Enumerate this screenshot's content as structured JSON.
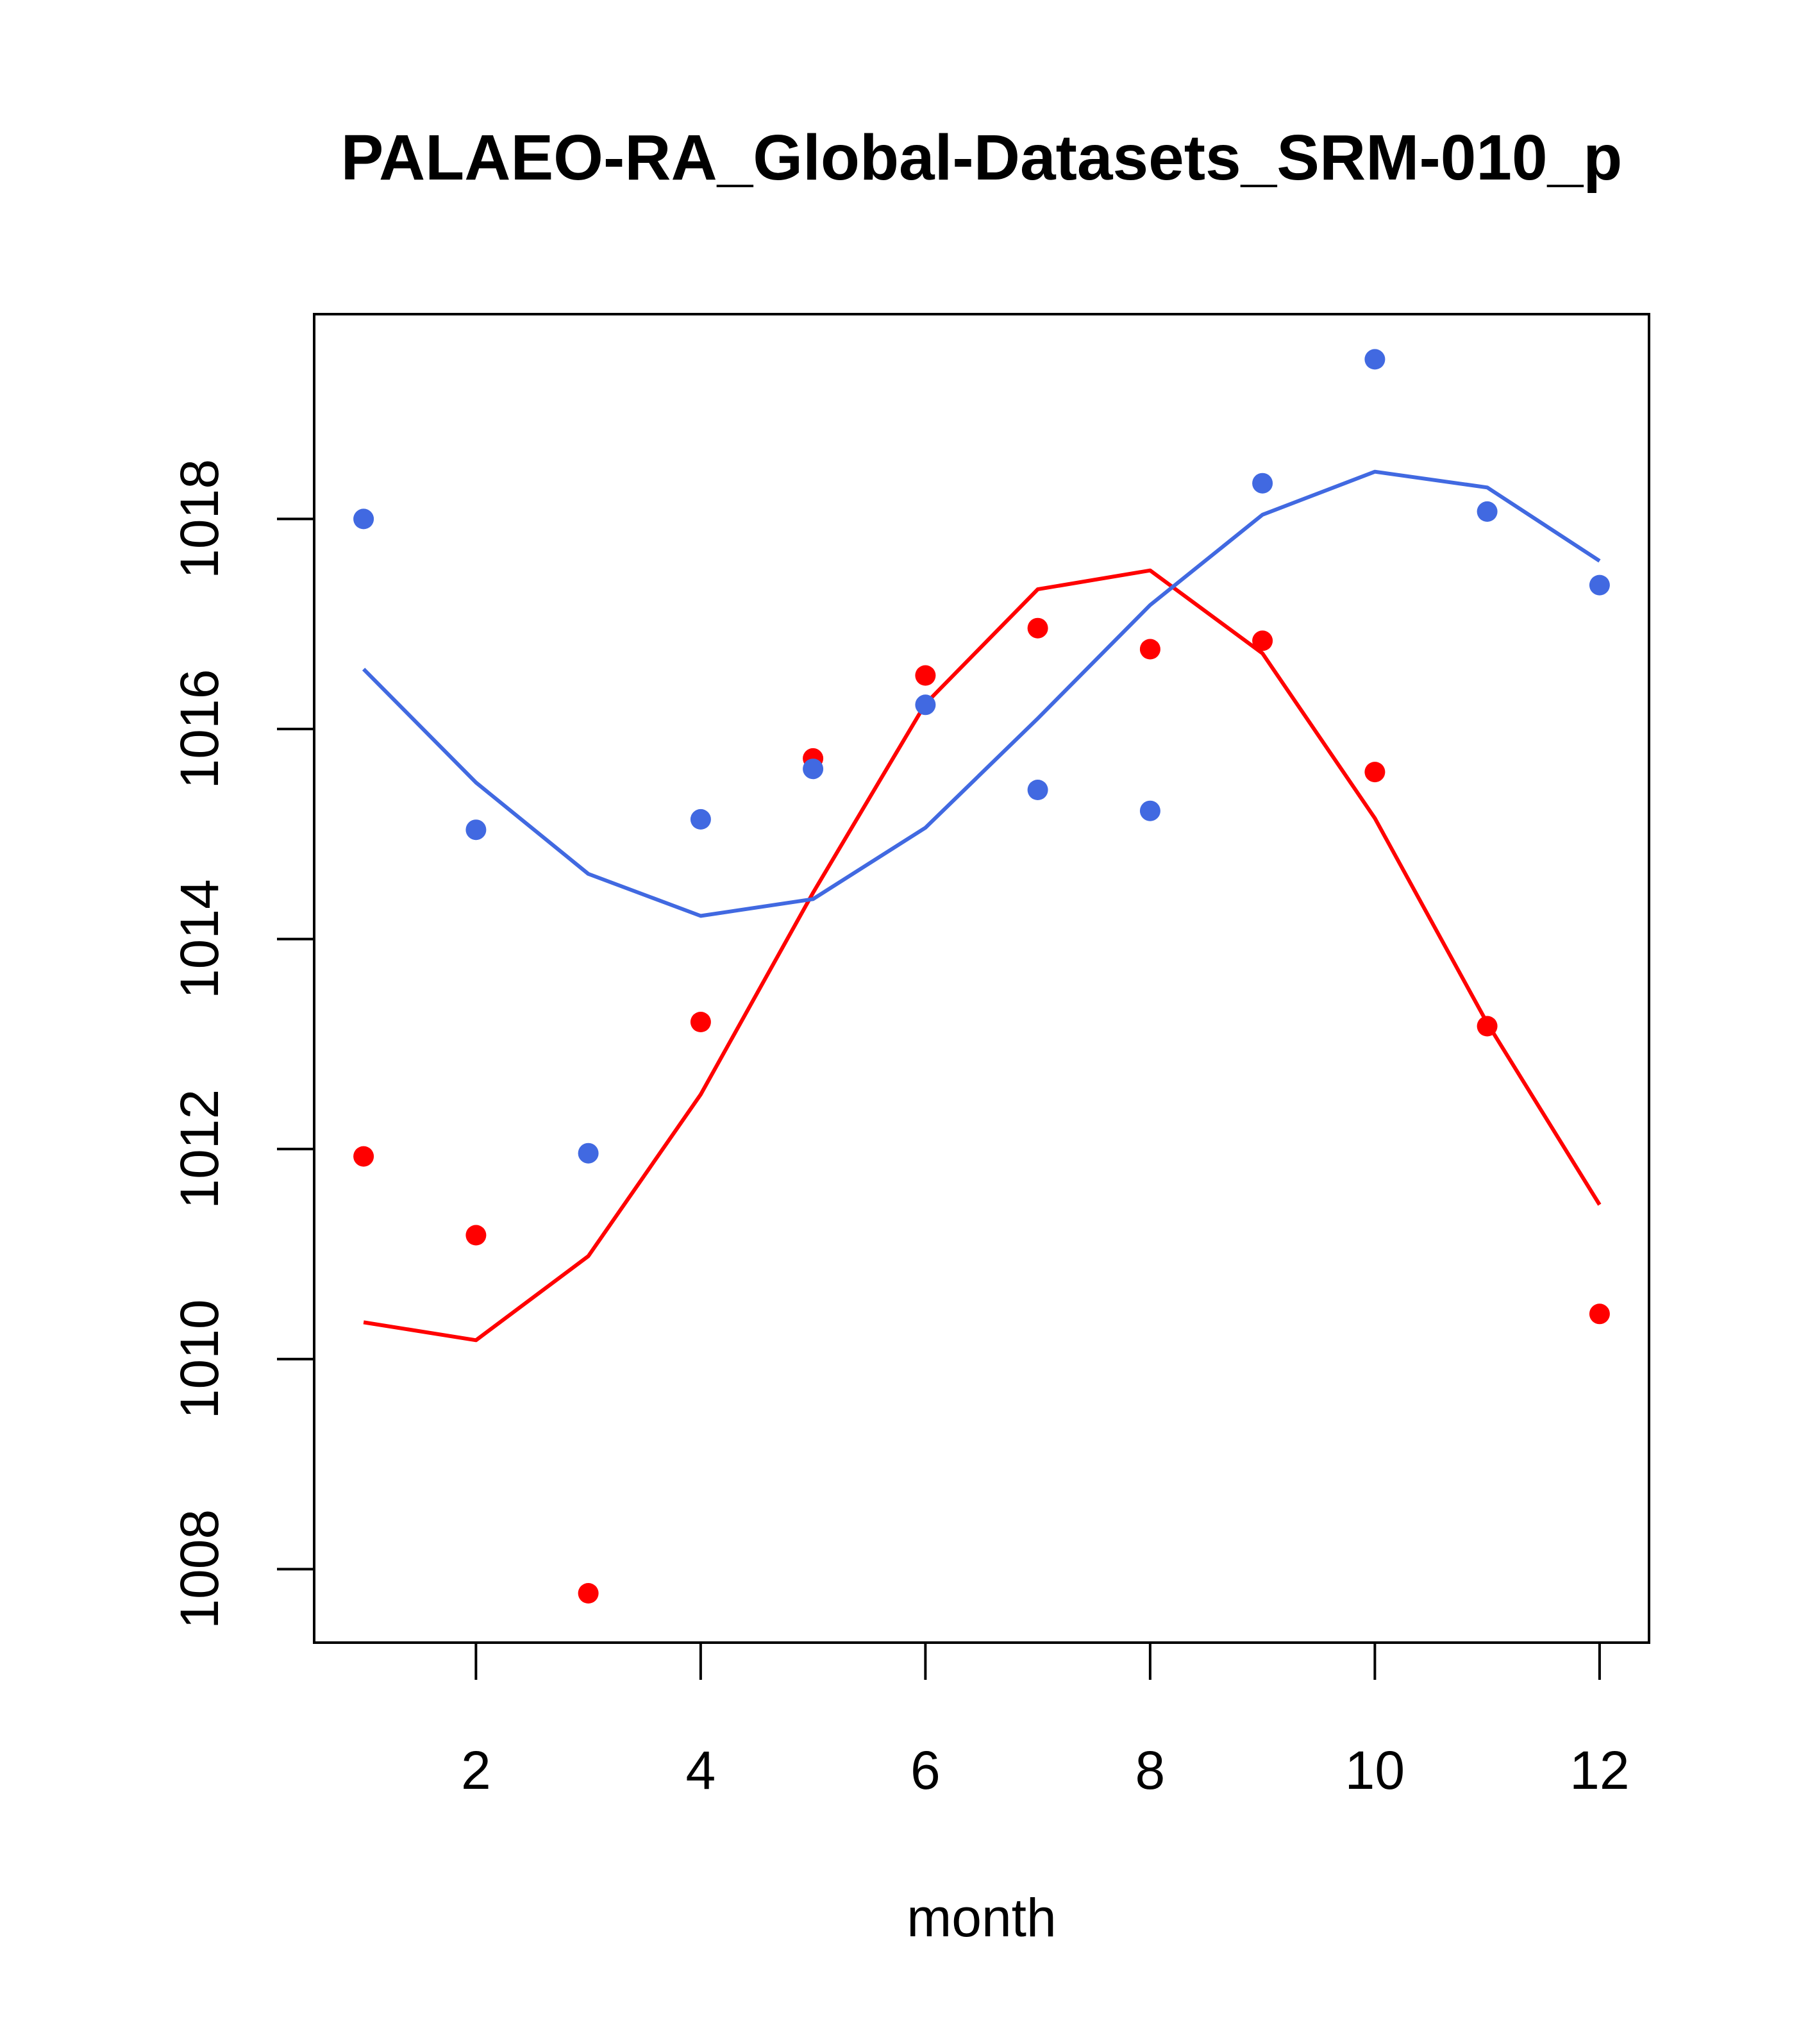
{
  "chart_data": {
    "type": "scatter",
    "title": "PALAEO-RA_Global-Datasets_SRM-010_p",
    "xlabel": "month",
    "ylabel": "",
    "xlim": [
      0.56,
      12.44
    ],
    "ylim": [
      1007.3,
      1019.95
    ],
    "xticks": [
      2,
      4,
      6,
      8,
      10,
      12
    ],
    "yticks": [
      1008,
      1010,
      1012,
      1014,
      1016,
      1018
    ],
    "grid": false,
    "legend": "none",
    "series": [
      {
        "name": "red",
        "color": "#ff0000",
        "points_x": [
          1,
          2,
          3,
          4,
          5,
          6,
          7,
          8,
          9,
          10,
          11,
          12
        ],
        "points_y": [
          1011.93,
          1011.18,
          1007.77,
          1013.21,
          1015.72,
          1016.51,
          1016.96,
          1016.76,
          1016.84,
          1015.59,
          1013.17,
          1010.43
        ],
        "line_x": [
          1,
          2,
          3,
          4,
          5,
          6,
          7,
          8,
          9,
          10,
          11,
          12
        ],
        "line_y": [
          1010.35,
          1010.18,
          1010.98,
          1012.52,
          1014.44,
          1016.24,
          1017.33,
          1017.51,
          1016.72,
          1015.15,
          1013.2,
          1011.47
        ]
      },
      {
        "name": "blue",
        "color": "#4169e1",
        "points_x": [
          1,
          2,
          3,
          4,
          5,
          6,
          7,
          8,
          9,
          10,
          11,
          12
        ],
        "points_y": [
          1018.0,
          1015.04,
          1011.96,
          1015.14,
          1015.62,
          1016.23,
          1015.42,
          1015.22,
          1018.34,
          1019.52,
          1018.07,
          1017.37
        ],
        "line_x": [
          1,
          2,
          3,
          4,
          5,
          6,
          7,
          8,
          9,
          10,
          11,
          12
        ],
        "line_y": [
          1016.57,
          1015.49,
          1014.62,
          1014.22,
          1014.38,
          1015.06,
          1016.1,
          1017.18,
          1018.04,
          1018.45,
          1018.3,
          1017.6
        ]
      }
    ]
  }
}
